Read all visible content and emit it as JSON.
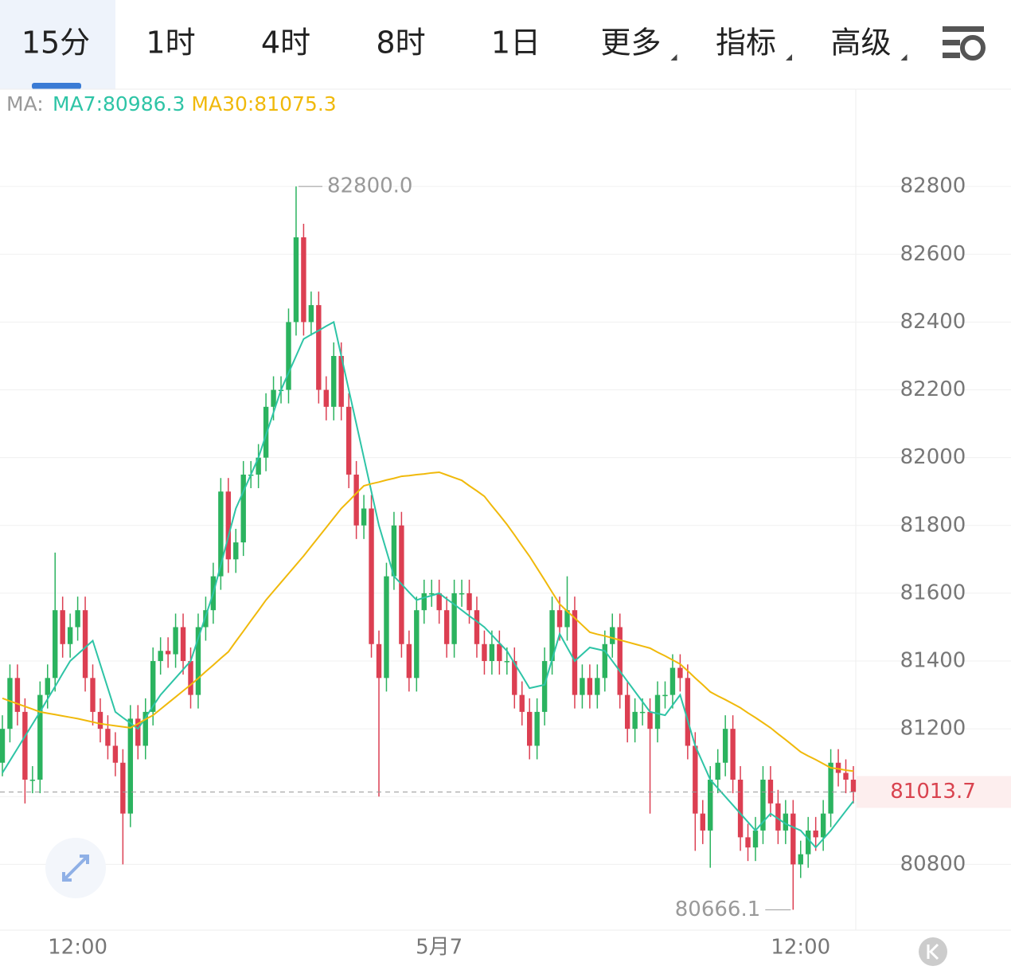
{
  "tabs": [
    "15分",
    "1时",
    "4时",
    "8时",
    "1日",
    "更多",
    "指标",
    "高级"
  ],
  "active_tab": 0,
  "chart_data": {
    "type": "candlestick",
    "legend_prefix": "MA:",
    "max_label": "82800.0",
    "max_index": 39,
    "min_label": "80666.1",
    "min_index": 105,
    "up_color": "#2bb35f",
    "down_color": "#dc3f52",
    "categories": [
      null,
      null,
      null,
      null,
      null,
      null,
      null,
      null,
      null,
      null,
      "12:00",
      null,
      null,
      null,
      null,
      null,
      null,
      null,
      null,
      null,
      null,
      null,
      null,
      null,
      null,
      null,
      null,
      null,
      null,
      null,
      null,
      null,
      null,
      null,
      null,
      null,
      null,
      null,
      null,
      null,
      null,
      null,
      null,
      null,
      null,
      null,
      null,
      null,
      null,
      null,
      null,
      null,
      null,
      null,
      null,
      null,
      null,
      null,
      "5月7",
      null,
      null,
      null,
      null,
      null,
      null,
      null,
      null,
      null,
      null,
      null,
      null,
      null,
      null,
      null,
      null,
      null,
      null,
      null,
      null,
      null,
      null,
      null,
      null,
      null,
      null,
      null,
      null,
      null,
      null,
      null,
      null,
      null,
      null,
      null,
      null,
      null,
      null,
      null,
      null,
      null,
      null,
      null,
      null,
      null,
      null,
      null,
      "12:00",
      null,
      null,
      null,
      null,
      null,
      null,
      null
    ],
    "open": [
      81100,
      81200,
      81350,
      81250,
      81050,
      81050,
      81300,
      81350,
      81550,
      81450,
      81500,
      81550,
      81350,
      81250,
      81200,
      81150,
      81100,
      80950,
      81230,
      81150,
      81250,
      81400,
      81430,
      81420,
      81500,
      81400,
      81300,
      81500,
      81550,
      81650,
      81900,
      81700,
      81750,
      81950,
      81950,
      82000,
      82150,
      82200,
      82200,
      82400,
      82650,
      82400,
      82450,
      82200,
      82150,
      82300,
      82150,
      81950,
      81800,
      81850,
      81450,
      81350,
      81650,
      81800,
      81450,
      81350,
      81550,
      81600,
      81600,
      81550,
      81450,
      81600,
      81600,
      81550,
      81450,
      81400,
      81450,
      81400,
      81400,
      81300,
      81250,
      81150,
      81250,
      81400,
      81550,
      81500,
      81550,
      81300,
      81350,
      81300,
      81350,
      81450,
      81500,
      81300,
      81200,
      81250,
      81250,
      81200,
      81300,
      81300,
      81380,
      81350,
      81150,
      80950,
      80900,
      81050,
      81100,
      81200,
      81050,
      80880,
      80850,
      80900,
      81050,
      80980,
      80900,
      80950,
      80800,
      80830,
      80900,
      80880,
      80950,
      81100,
      81070,
      81050
    ],
    "high": [
      81240,
      81390,
      81390,
      81290,
      81090,
      81340,
      81390,
      81720,
      81590,
      81540,
      81590,
      81590,
      81390,
      81290,
      81240,
      81190,
      81140,
      81270,
      81270,
      81290,
      81440,
      81470,
      81470,
      81540,
      81540,
      81440,
      81540,
      81590,
      81690,
      81940,
      81940,
      81790,
      81990,
      81990,
      82040,
      82190,
      82240,
      82240,
      82440,
      82800,
      82690,
      82490,
      82490,
      82240,
      82340,
      82340,
      82190,
      81990,
      81890,
      81890,
      81490,
      81690,
      81840,
      81840,
      81490,
      81590,
      81640,
      81640,
      81640,
      81590,
      81640,
      81640,
      81640,
      81590,
      81490,
      81490,
      81490,
      81440,
      81440,
      81340,
      81290,
      81290,
      81440,
      81590,
      81590,
      81650,
      81590,
      81390,
      81390,
      81390,
      81490,
      81540,
      81540,
      81340,
      81290,
      81290,
      81290,
      81340,
      81340,
      81420,
      81420,
      81390,
      81190,
      80990,
      81090,
      81140,
      81240,
      81240,
      81090,
      80920,
      80940,
      81090,
      81090,
      81020,
      80990,
      80990,
      80870,
      80940,
      80940,
      80990,
      81140,
      81140,
      81110,
      81090
    ],
    "low": [
      81060,
      81160,
      81210,
      80980,
      81010,
      81010,
      81260,
      81310,
      81410,
      81410,
      81460,
      81310,
      81210,
      81160,
      81110,
      81060,
      80800,
      80910,
      81110,
      81110,
      81210,
      81360,
      81380,
      81380,
      81360,
      81260,
      81260,
      81460,
      81510,
      81610,
      81660,
      81660,
      81710,
      81910,
      81910,
      81960,
      82110,
      82160,
      82160,
      82360,
      82360,
      82360,
      82160,
      82110,
      82110,
      82110,
      81910,
      81760,
      81760,
      81410,
      81000,
      81310,
      81610,
      81410,
      81310,
      81310,
      81510,
      81560,
      81510,
      81410,
      81410,
      81560,
      81510,
      81410,
      81360,
      81360,
      81360,
      81360,
      81260,
      81210,
      81110,
      81110,
      81210,
      81360,
      81460,
      81460,
      81260,
      81260,
      81260,
      81260,
      81310,
      81410,
      81260,
      81160,
      81160,
      81210,
      80950,
      81160,
      81260,
      81260,
      81310,
      81110,
      80840,
      80860,
      80790,
      81010,
      81060,
      81010,
      80840,
      80810,
      80810,
      80860,
      80940,
      80860,
      80860,
      80666.1,
      80760,
      80790,
      80840,
      80840,
      80910,
      81030,
      81010,
      80980
    ],
    "close": [
      81200,
      81350,
      81250,
      81050,
      81050,
      81300,
      81350,
      81550,
      81450,
      81500,
      81550,
      81350,
      81250,
      81200,
      81150,
      81100,
      80950,
      81230,
      81150,
      81250,
      81400,
      81430,
      81420,
      81500,
      81400,
      81300,
      81500,
      81550,
      81650,
      81900,
      81700,
      81750,
      81950,
      81950,
      82000,
      82150,
      82200,
      82200,
      82400,
      82650,
      82400,
      82450,
      82200,
      82150,
      82300,
      82150,
      81950,
      81800,
      81850,
      81450,
      81350,
      81650,
      81800,
      81450,
      81350,
      81550,
      81600,
      81600,
      81550,
      81450,
      81600,
      81600,
      81550,
      81450,
      81400,
      81450,
      81400,
      81400,
      81300,
      81250,
      81150,
      81250,
      81400,
      81550,
      81500,
      81550,
      81300,
      81350,
      81300,
      81350,
      81450,
      81500,
      81300,
      81200,
      81250,
      81250,
      81200,
      81300,
      81300,
      81380,
      81350,
      81150,
      80950,
      80900,
      81050,
      81100,
      81200,
      81050,
      80880,
      80850,
      80900,
      81050,
      80980,
      80900,
      80950,
      80800,
      80830,
      80900,
      80880,
      80950,
      81100,
      81070,
      81050,
      81013.7
    ],
    "series": [
      {
        "name": "MA7:80986.3",
        "color": "#2ec4a6",
        "values": [
          81070,
          81106,
          81142,
          81178,
          81214,
          81250,
          81288,
          81325,
          81363,
          81400,
          81420,
          81440,
          81460,
          81390,
          81320,
          81250,
          81233,
          81217,
          81200,
          81233,
          81267,
          81300,
          81325,
          81350,
          81375,
          81400,
          81467,
          81533,
          81600,
          81683,
          81767,
          81850,
          81900,
          81950,
          82000,
          82067,
          82133,
          82200,
          82250,
          82300,
          82350,
          82363,
          82375,
          82388,
          82400,
          82300,
          82200,
          82100,
          82000,
          81900,
          81800,
          81725,
          81650,
          81627,
          81603,
          81580,
          81587,
          81593,
          81600,
          81583,
          81567,
          81550,
          81533,
          81517,
          81500,
          81477,
          81453,
          81430,
          81393,
          81357,
          81320,
          81325,
          81330,
          81405,
          81480,
          81440,
          81400,
          81420,
          81440,
          81435,
          81430,
          81400,
          81370,
          81340,
          81310,
          81280,
          81250,
          81245,
          81240,
          81270,
          81300,
          81225,
          81150,
          81100,
          81050,
          81025,
          81000,
          80975,
          80950,
          80925,
          80900,
          80925,
          80950,
          80935,
          80920,
          80910,
          80900,
          80875,
          80850,
          80875,
          80900,
          80929,
          80958,
          80986.3
        ]
      },
      {
        "name": "MA30:81075.3",
        "color": "#f0b90b",
        "values": [
          81290,
          81282,
          81274,
          81266,
          81258,
          81250,
          81246,
          81242,
          81238,
          81234,
          81230,
          81225,
          81220,
          81215,
          81212,
          81209,
          81206,
          81203,
          81215,
          81228,
          81240,
          81258,
          81276,
          81294,
          81312,
          81330,
          81349,
          81369,
          81388,
          81408,
          81427,
          81458,
          81488,
          81519,
          81549,
          81580,
          81606,
          81632,
          81658,
          81684,
          81710,
          81738,
          81766,
          81794,
          81822,
          81850,
          81872,
          81895,
          81917,
          81923,
          81928,
          81934,
          81939,
          81945,
          81947,
          81950,
          81952,
          81955,
          81957,
          81949,
          81941,
          81933,
          81917,
          81902,
          81886,
          81858,
          81831,
          81803,
          81772,
          81740,
          81709,
          81674,
          81639,
          81603,
          81568,
          81547,
          81527,
          81506,
          81485,
          81479,
          81474,
          81468,
          81462,
          81456,
          81450,
          81444,
          81438,
          81426,
          81415,
          81403,
          81391,
          81371,
          81350,
          81330,
          81309,
          81297,
          81286,
          81274,
          81262,
          81247,
          81233,
          81218,
          81203,
          81185,
          81168,
          81150,
          81132,
          81120,
          81109,
          81097,
          81085,
          81082,
          81078,
          81075.3
        ]
      }
    ],
    "ylim": [
      80606,
      83087
    ],
    "yticks": [
      80800,
      81000,
      81200,
      81400,
      81600,
      81800,
      82000,
      82200,
      82400,
      82600,
      82800
    ],
    "grid_ticks_hidden_label": [
      81000
    ],
    "grid": true
  }
}
